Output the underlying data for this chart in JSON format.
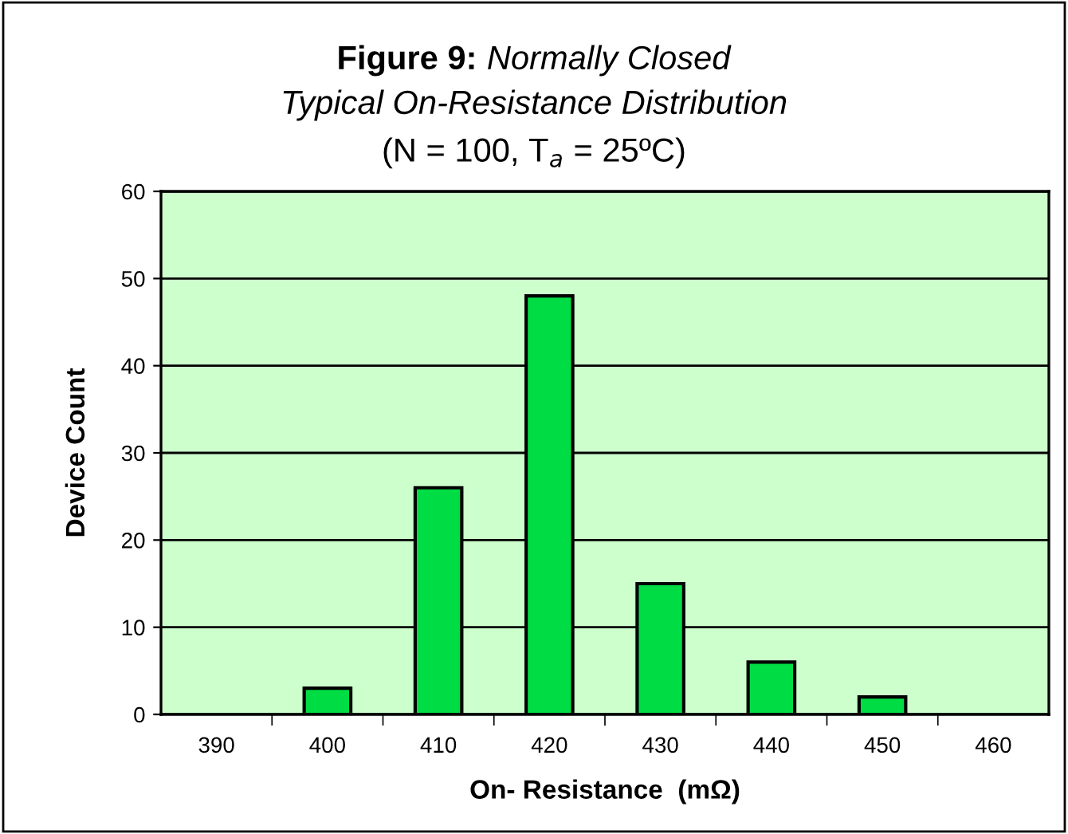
{
  "chart_data": {
    "type": "bar",
    "title": "Figure 9: Normally Closed",
    "subtitle": "Typical On-Resistance Distribution\n(N = 100, T$_{a}$ = 25ºC)",
    "xlabel": "On- Resistance  (mΩ)",
    "ylabel": "Device Count",
    "categories": [
      "390",
      "400",
      "410",
      "420",
      "430",
      "440",
      "450",
      "460"
    ],
    "values": [
      0,
      3,
      26,
      48,
      15,
      6,
      2,
      0
    ],
    "color": "#00dd44",
    "ylim": [
      0,
      60
    ],
    "yticks": [
      0,
      10,
      20,
      30,
      40,
      50,
      60
    ],
    "grid": "y"
  }
}
